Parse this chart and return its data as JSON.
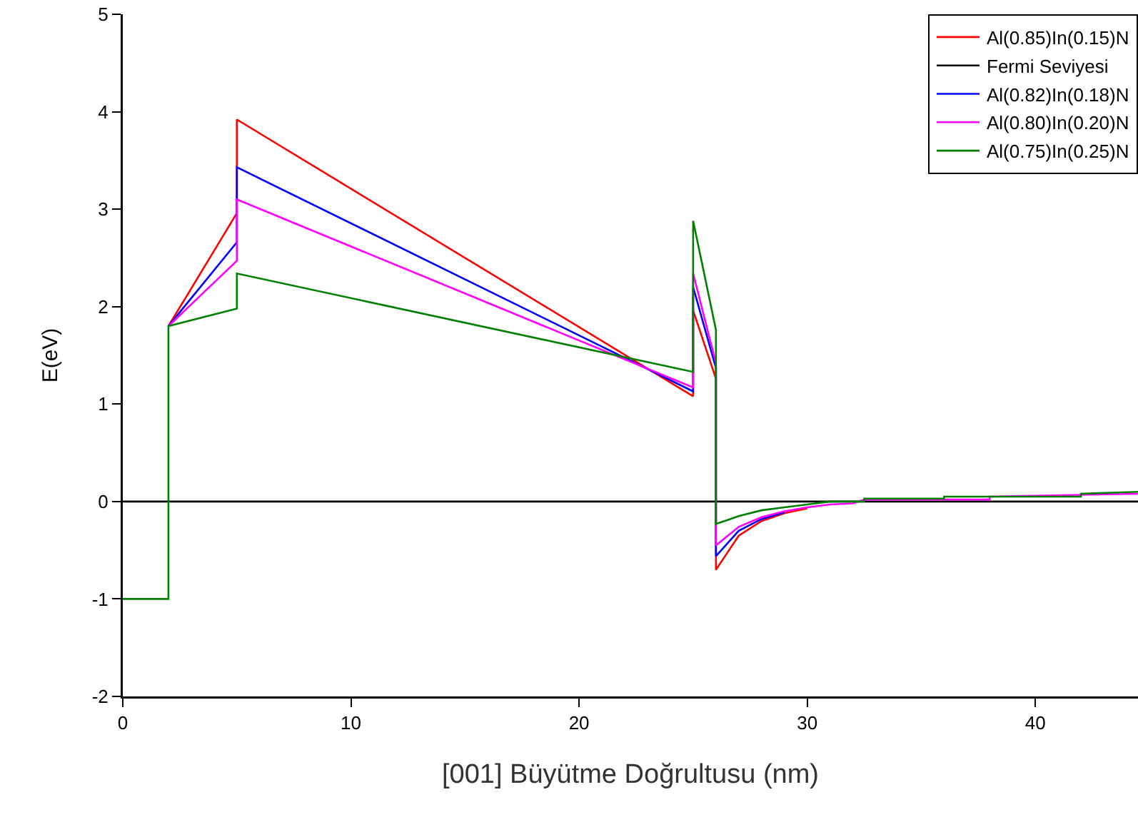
{
  "chart_data": {
    "type": "line",
    "xlabel": "[001] Büyütme Doğrultusu (nm)",
    "ylabel": "E(eV)",
    "xlim": [
      0,
      44.5
    ],
    "ylim": [
      -2,
      5
    ],
    "xticks": [
      0,
      10,
      20,
      30,
      40
    ],
    "yticks": [
      -2,
      -1,
      0,
      1,
      2,
      3,
      4,
      5
    ],
    "grid": false,
    "legend": "top right",
    "marker": "none",
    "line_style": "solid",
    "series": [
      {
        "name": "Al(0.85)In(0.15)N",
        "color": "#ff0000",
        "x": [
          2,
          5,
          5,
          25,
          25,
          26,
          26,
          27,
          28,
          29,
          30
        ],
        "values": [
          1.8,
          2.96,
          3.92,
          1.08,
          1.96,
          1.26,
          -0.7,
          -0.35,
          -0.2,
          -0.12,
          -0.07
        ]
      },
      {
        "name": "Fermi Seviyesi",
        "color": "#000000",
        "x": [
          0,
          44.5
        ],
        "values": [
          0,
          0
        ]
      },
      {
        "name": "Al(0.82)In(0.18)N",
        "color": "#0000ff",
        "x": [
          2,
          5,
          5,
          25,
          25,
          26,
          26,
          27,
          28,
          29
        ],
        "values": [
          1.8,
          2.66,
          3.43,
          1.13,
          2.2,
          1.37,
          -0.56,
          -0.3,
          -0.18,
          -0.11
        ]
      },
      {
        "name": "Al(0.80)In(0.20)N",
        "color": "#ff00ff",
        "x": [
          2,
          5,
          5,
          25,
          25,
          26,
          26,
          27,
          28,
          29,
          30,
          31,
          32,
          32.5,
          38,
          38,
          44.5
        ],
        "values": [
          1.8,
          2.47,
          3.1,
          1.17,
          2.34,
          1.42,
          -0.45,
          -0.26,
          -0.16,
          -0.1,
          -0.06,
          -0.03,
          -0.02,
          0.02,
          0.02,
          0.05,
          0.08
        ]
      },
      {
        "name": "Al(0.75)In(0.25)N",
        "color": "#008000",
        "x": [
          0,
          2,
          2,
          5,
          5,
          25,
          25,
          26,
          26,
          27,
          28,
          29,
          30,
          31,
          32.5,
          32.5,
          36,
          36,
          42,
          42,
          44.5
        ],
        "values": [
          -1,
          -1,
          1.8,
          1.98,
          2.34,
          1.33,
          2.88,
          1.76,
          -0.23,
          -0.15,
          -0.09,
          -0.06,
          -0.03,
          0,
          0,
          0.03,
          0.03,
          0.05,
          0.05,
          0.08,
          0.1
        ]
      }
    ]
  }
}
